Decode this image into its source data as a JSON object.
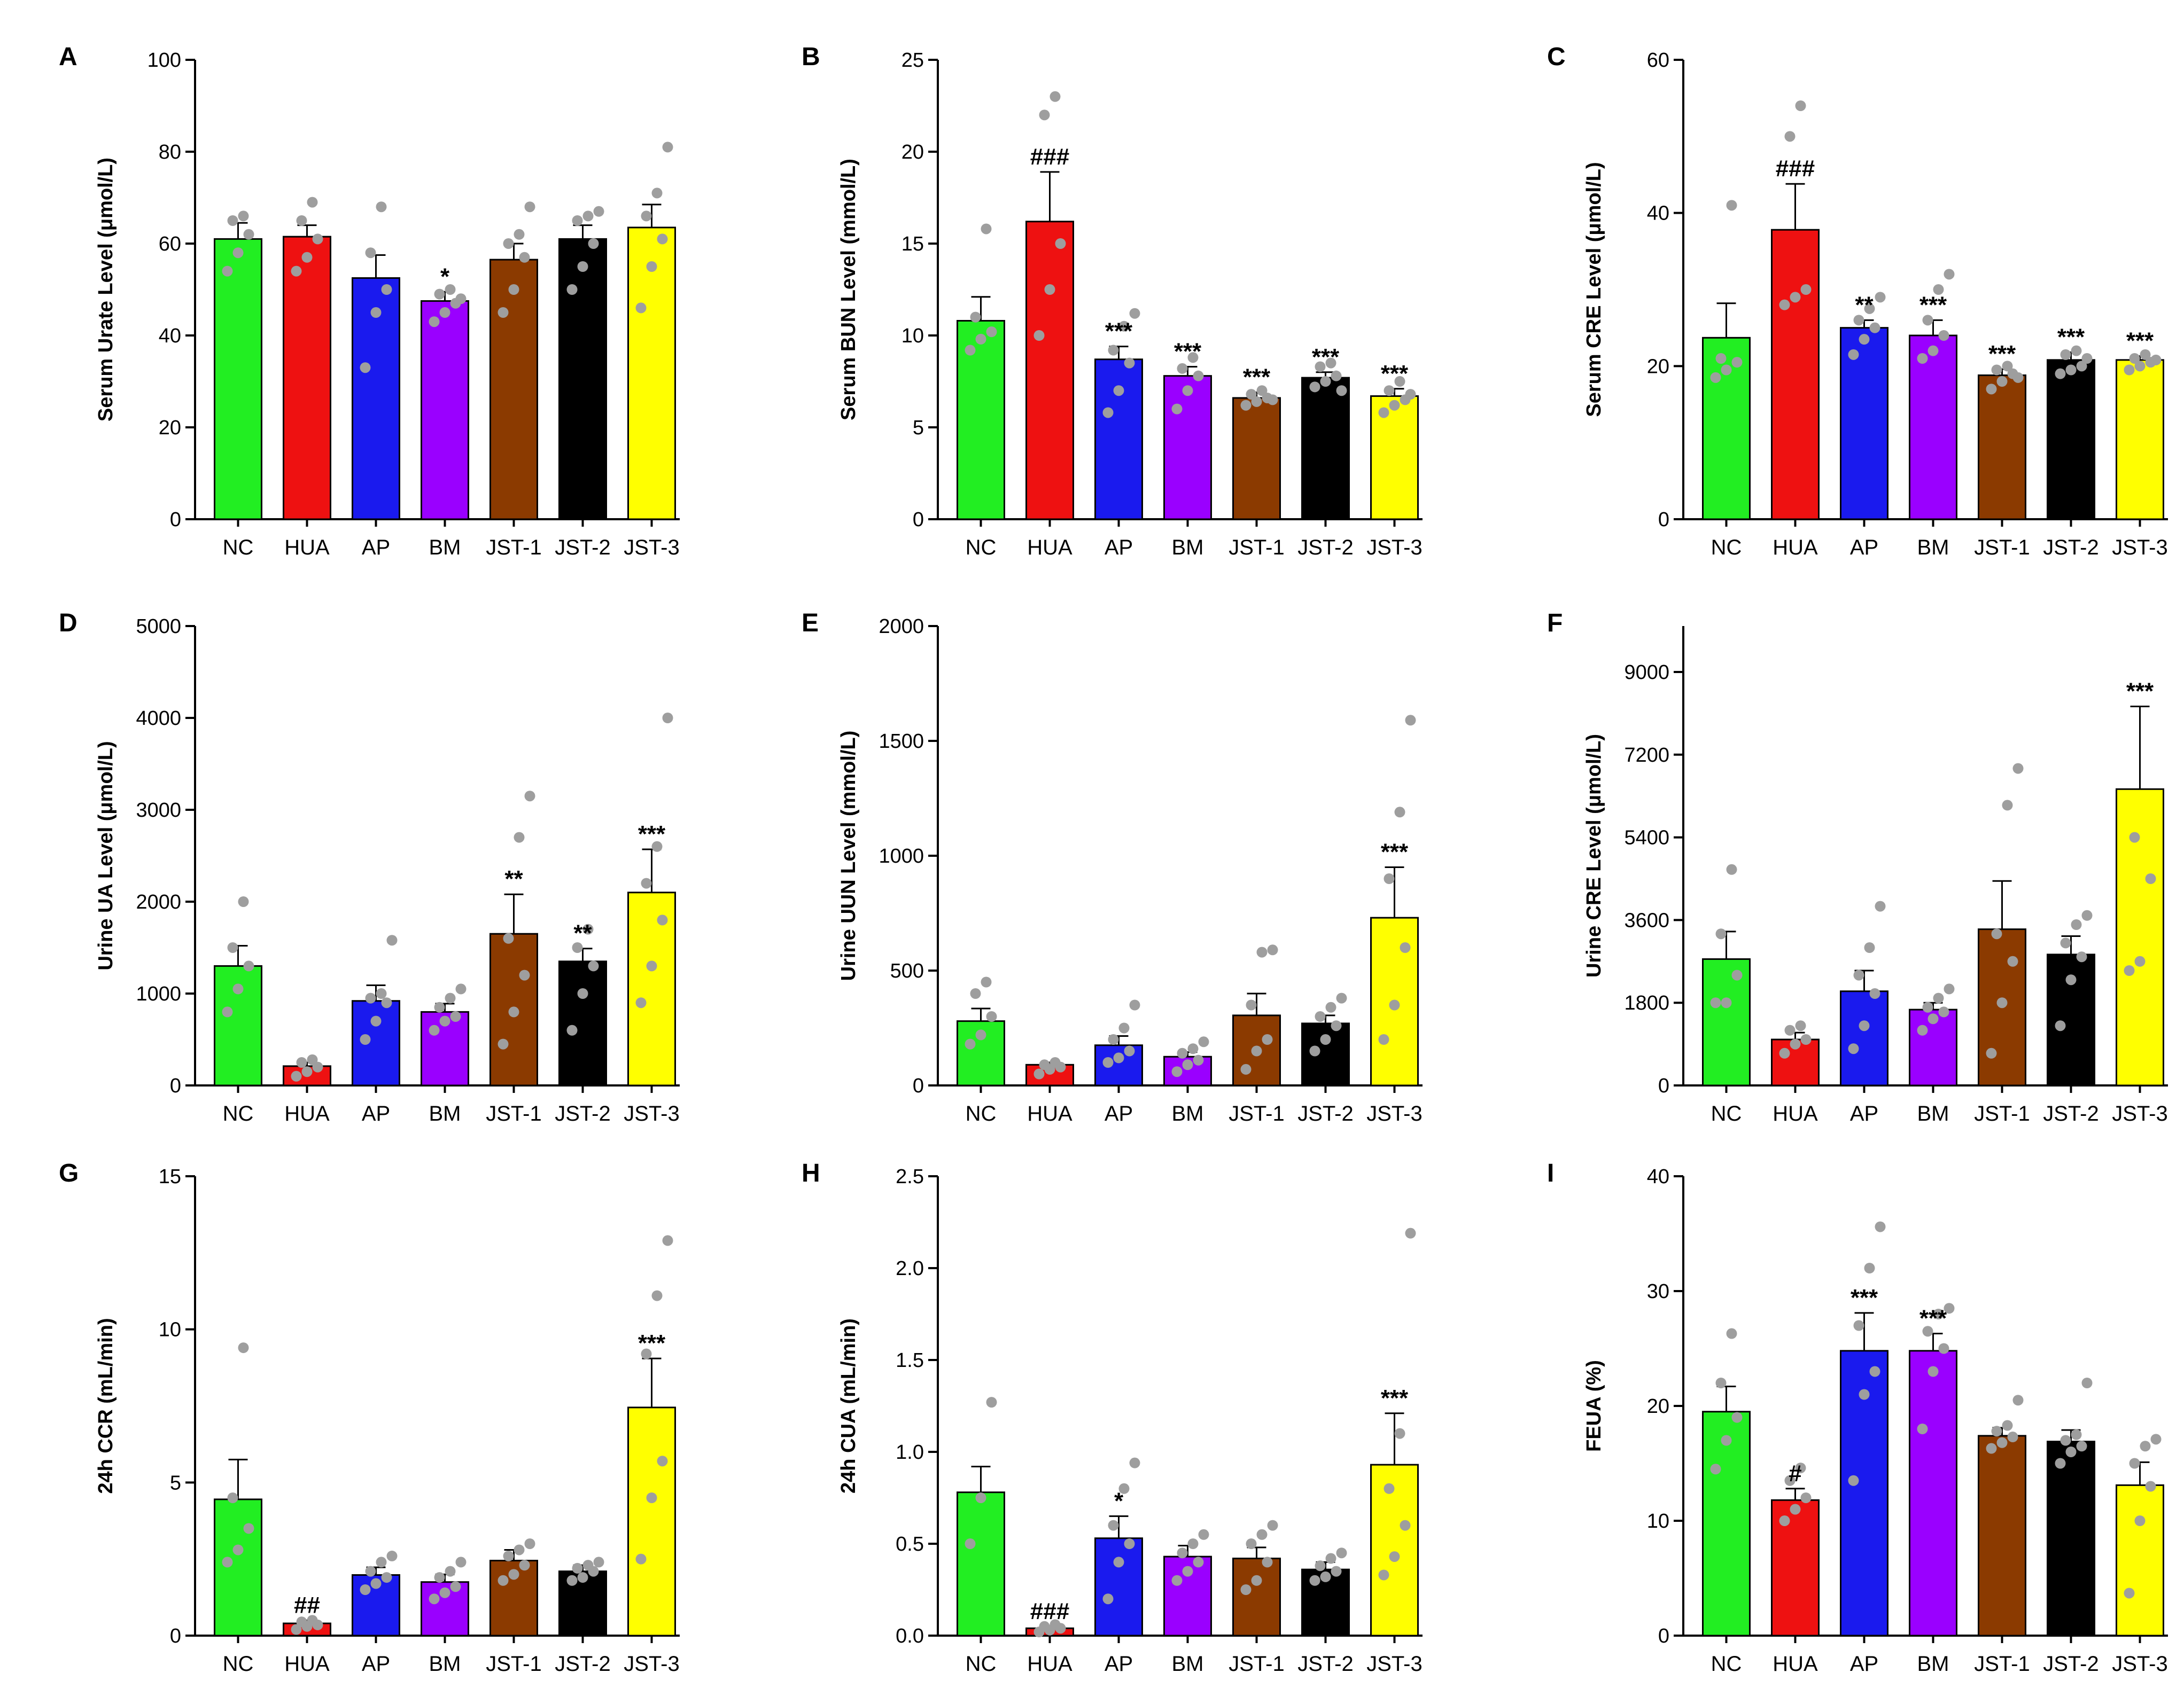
{
  "categories": [
    "NC",
    "HUA",
    "AP",
    "BM",
    "JST-1",
    "JST-2",
    "JST-3"
  ],
  "colors": [
    "#22ee22",
    "#ee1111",
    "#1a1aee",
    "#9a00ff",
    "#8b3a00",
    "#000000",
    "#ffff00"
  ],
  "chart_data": [
    {
      "id": "A",
      "type": "bar",
      "title": "",
      "ylabel": "Serum Urate Level (μmol/L)",
      "ylim": [
        0,
        100
      ],
      "yticks": [
        0,
        20,
        40,
        60,
        80,
        100
      ],
      "values": [
        61,
        61.5,
        52.5,
        47.5,
        56.5,
        61,
        63.5
      ],
      "errors": [
        3.5,
        2.5,
        5,
        2,
        3.5,
        3,
        5
      ],
      "points": [
        [
          54,
          58,
          62,
          65,
          66
        ],
        [
          54,
          57,
          61,
          65,
          69
        ],
        [
          33,
          45,
          50,
          58,
          68
        ],
        [
          43,
          45,
          47,
          49,
          50,
          48
        ],
        [
          45,
          50,
          57,
          60,
          62,
          68
        ],
        [
          50,
          55,
          60,
          65,
          66,
          67
        ],
        [
          46,
          55,
          61,
          66,
          71,
          81
        ]
      ],
      "sig": [
        "",
        "",
        "",
        "*",
        "",
        "",
        ""
      ]
    },
    {
      "id": "B",
      "type": "bar",
      "title": "",
      "ylabel": "Serum BUN Level (mmol/L)",
      "ylim": [
        0,
        25
      ],
      "yticks": [
        0,
        5,
        10,
        15,
        20,
        25
      ],
      "values": [
        10.8,
        16.2,
        8.7,
        7.8,
        6.6,
        7.7,
        6.7
      ],
      "errors": [
        1.3,
        2.7,
        0.7,
        0.5,
        0.3,
        0.3,
        0.4
      ],
      "points": [
        [
          9.2,
          9.8,
          10.2,
          11,
          15.8
        ],
        [
          10,
          12.5,
          15,
          22,
          23
        ],
        [
          5.8,
          7,
          8.5,
          9.2,
          10.5,
          11.2
        ],
        [
          6,
          7,
          7.8,
          8.2,
          8.8
        ],
        [
          6.2,
          6.4,
          6.6,
          6.8,
          7,
          6.5
        ],
        [
          7.2,
          7.5,
          7.8,
          8.3,
          8.5,
          7
        ],
        [
          5.8,
          6.2,
          6.5,
          7,
          7.5,
          6.8
        ]
      ],
      "sig": [
        "",
        "###",
        "***",
        "***",
        "***",
        "***",
        "***"
      ]
    },
    {
      "id": "C",
      "type": "bar",
      "title": "",
      "ylabel": "Serum CRE Level (μmol/L)",
      "ylim": [
        0,
        60
      ],
      "yticks": [
        0,
        20,
        40,
        60
      ],
      "values": [
        23.7,
        37.8,
        25,
        24,
        18.8,
        20.8,
        20.8
      ],
      "errors": [
        4.5,
        6,
        1,
        2,
        0.8,
        1,
        0.5
      ],
      "points": [
        [
          18.5,
          19.5,
          20.5,
          21,
          41
        ],
        [
          28,
          29,
          30,
          50,
          54
        ],
        [
          21.5,
          23.5,
          25,
          26,
          27.5,
          29
        ],
        [
          21,
          22,
          24,
          26,
          30,
          32
        ],
        [
          17,
          18,
          19,
          19.5,
          20,
          18.5
        ],
        [
          19,
          19.5,
          20,
          21.5,
          22,
          21
        ],
        [
          19.5,
          20,
          20.5,
          21,
          21.5,
          20.8
        ]
      ],
      "sig": [
        "",
        "###",
        "**",
        "***",
        "***",
        "***",
        "***"
      ]
    },
    {
      "id": "D",
      "type": "bar",
      "title": "",
      "ylabel": "Urine UA Level (μmol/L)",
      "ylim": [
        0,
        5000
      ],
      "yticks": [
        0,
        1000,
        2000,
        3000,
        4000,
        5000
      ],
      "values": [
        1300,
        210,
        920,
        800,
        1650,
        1350,
        2100
      ],
      "errors": [
        220,
        40,
        170,
        90,
        430,
        140,
        470
      ],
      "points": [
        [
          800,
          1050,
          1300,
          1500,
          2000
        ],
        [
          100,
          150,
          200,
          250,
          280
        ],
        [
          500,
          700,
          900,
          950,
          1000,
          1580
        ],
        [
          600,
          700,
          750,
          850,
          950,
          1050
        ],
        [
          450,
          800,
          1200,
          1600,
          2700,
          3150
        ],
        [
          600,
          1000,
          1300,
          1500,
          1700
        ],
        [
          900,
          1300,
          1800,
          2200,
          2600,
          4000
        ]
      ],
      "sig": [
        "",
        "",
        "",
        "",
        "**",
        "**",
        "***"
      ]
    },
    {
      "id": "E",
      "type": "bar",
      "title": "",
      "ylabel": "Urine UUN Level (mmol/L)",
      "ylim": [
        0,
        2000
      ],
      "yticks": [
        0,
        500,
        1000,
        1500,
        2000
      ],
      "values": [
        280,
        90,
        175,
        125,
        305,
        270,
        730
      ],
      "errors": [
        55,
        10,
        40,
        20,
        95,
        35,
        220
      ],
      "points": [
        [
          180,
          220,
          300,
          400,
          450
        ],
        [
          50,
          70,
          80,
          90,
          100
        ],
        [
          100,
          120,
          150,
          200,
          250,
          350
        ],
        [
          60,
          90,
          110,
          140,
          160,
          190
        ],
        [
          70,
          150,
          200,
          350,
          580,
          590
        ],
        [
          150,
          200,
          260,
          300,
          340,
          380
        ],
        [
          200,
          350,
          600,
          900,
          1190,
          1590
        ]
      ],
      "sig": [
        "",
        "",
        "",
        "",
        "",
        "",
        "***"
      ]
    },
    {
      "id": "F",
      "type": "bar",
      "title": "",
      "ylabel": "Urine CRE Level (μmol/L)",
      "ylim": [
        0,
        10000
      ],
      "yticks": [
        0,
        1800,
        3600,
        5400,
        7200,
        9000
      ],
      "values": [
        2750,
        1000,
        2050,
        1650,
        3400,
        2850,
        6450
      ],
      "errors": [
        600,
        150,
        450,
        150,
        1050,
        400,
        1800
      ],
      "points": [
        [
          1800,
          1800,
          2400,
          3300,
          4700
        ],
        [
          700,
          900,
          1000,
          1200,
          1300
        ],
        [
          800,
          1300,
          2000,
          2400,
          3000,
          3900
        ],
        [
          1200,
          1450,
          1600,
          1700,
          1900,
          2100
        ],
        [
          700,
          1800,
          2700,
          3300,
          6100,
          6900
        ],
        [
          1300,
          2300,
          2800,
          3100,
          3500,
          3700
        ],
        [
          2500,
          2700,
          4500,
          5400
        ]
      ],
      "sig": [
        "",
        "",
        "",
        "",
        "",
        "",
        "***"
      ]
    },
    {
      "id": "G",
      "type": "bar",
      "title": "",
      "ylabel": "24h CCR (mL/min)",
      "ylim": [
        0,
        15
      ],
      "yticks": [
        0,
        5,
        10,
        15
      ],
      "values": [
        4.45,
        0.4,
        1.98,
        1.75,
        2.45,
        2.1,
        7.45
      ],
      "errors": [
        1.3,
        0.1,
        0.25,
        0.25,
        0.35,
        0.2,
        1.6
      ],
      "points": [
        [
          2.4,
          2.8,
          3.5,
          4.5,
          9.4
        ],
        [
          0.2,
          0.3,
          0.35,
          0.45,
          0.5
        ],
        [
          1.5,
          1.7,
          1.9,
          2.1,
          2.4,
          2.6
        ],
        [
          1.2,
          1.4,
          1.6,
          1.9,
          2.1,
          2.4
        ],
        [
          1.8,
          2,
          2.3,
          2.6,
          2.8,
          3
        ],
        [
          1.8,
          1.9,
          2.1,
          2.2,
          2.3,
          2.4
        ],
        [
          2.5,
          4.5,
          5.7,
          9.2,
          11.1,
          12.9
        ]
      ],
      "sig": [
        "",
        "##",
        "",
        "",
        "",
        "",
        "***"
      ]
    },
    {
      "id": "H",
      "type": "bar",
      "title": "",
      "ylabel": "24h CUA (mL/min)",
      "ylim": [
        0,
        2.5
      ],
      "yticks": [
        0,
        0.5,
        1.0,
        1.5,
        2.0,
        2.5
      ],
      "values": [
        0.78,
        0.04,
        0.53,
        0.43,
        0.42,
        0.36,
        0.93
      ],
      "errors": [
        0.14,
        0.01,
        0.12,
        0.06,
        0.06,
        0.04,
        0.28
      ],
      "points": [
        [
          0.5,
          0.75,
          1.27
        ],
        [
          0.02,
          0.03,
          0.04,
          0.05,
          0.06
        ],
        [
          0.2,
          0.4,
          0.5,
          0.6,
          0.8,
          0.94
        ],
        [
          0.3,
          0.35,
          0.4,
          0.45,
          0.5,
          0.55
        ],
        [
          0.25,
          0.3,
          0.4,
          0.5,
          0.55,
          0.6
        ],
        [
          0.3,
          0.32,
          0.35,
          0.38,
          0.42,
          0.45
        ],
        [
          0.33,
          0.43,
          0.6,
          0.8,
          1.1,
          2.19
        ]
      ],
      "sig": [
        "",
        "###",
        "*",
        "",
        "",
        "",
        "***"
      ]
    },
    {
      "id": "I",
      "type": "bar",
      "title": "",
      "ylabel": "FEUA (%)",
      "ylim": [
        0,
        40
      ],
      "yticks": [
        0,
        10,
        20,
        30,
        40
      ],
      "values": [
        19.5,
        11.8,
        24.8,
        24.8,
        17.4,
        16.9,
        13.1
      ],
      "errors": [
        2.2,
        1,
        3.3,
        1.5,
        0.7,
        1,
        2
      ],
      "points": [
        [
          14.5,
          17,
          19,
          22,
          26.3
        ],
        [
          10,
          11,
          12,
          13.5,
          14.6
        ],
        [
          13.5,
          21,
          23,
          27,
          32,
          35.6
        ],
        [
          18,
          23,
          25,
          26.5,
          28,
          28.5
        ],
        [
          16.3,
          16.8,
          17.3,
          17.8,
          18.3,
          20.5
        ],
        [
          15,
          16,
          16.5,
          17,
          17.5,
          22
        ],
        [
          3.7,
          10,
          13,
          15,
          16.5,
          17.1
        ]
      ],
      "sig": [
        "",
        "#",
        "***",
        "***",
        "",
        "",
        ""
      ]
    }
  ]
}
